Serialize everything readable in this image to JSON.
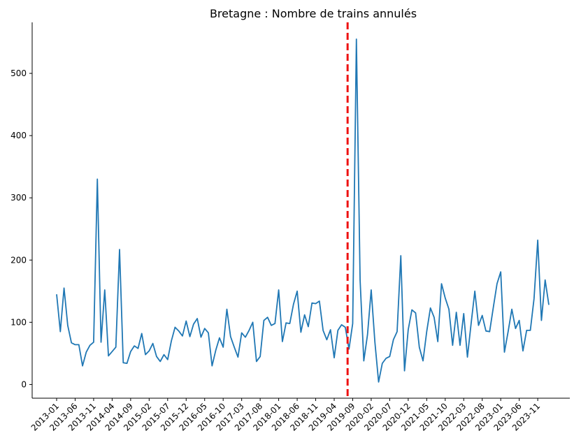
{
  "chart_data": {
    "type": "line",
    "title": "Bretagne : Nombre de trains annulés",
    "xlabel": "",
    "ylabel": "",
    "ylim": [
      -22,
      582
    ],
    "y_ticks": [
      0,
      100,
      200,
      300,
      400,
      500
    ],
    "x_tick_labels": [
      "2013-01",
      "2013-06",
      "2013-11",
      "2014-04",
      "2014-09",
      "2015-02",
      "2015-07",
      "2015-12",
      "2016-05",
      "2016-10",
      "2017-03",
      "2017-08",
      "2018-01",
      "2018-06",
      "2018-11",
      "2019-04",
      "2019-09",
      "2020-02",
      "2020-07",
      "2020-12",
      "2021-05",
      "2021-10",
      "2022-03",
      "2022-08",
      "2023-01",
      "2023-06",
      "2023-11"
    ],
    "x_tick_index": [
      0,
      5,
      10,
      15,
      20,
      25,
      30,
      35,
      40,
      45,
      50,
      55,
      60,
      65,
      70,
      75,
      80,
      85,
      90,
      95,
      100,
      105,
      110,
      115,
      120,
      125,
      130
    ],
    "vline": {
      "index": 79,
      "color": "#ee1111",
      "style": "dashed"
    },
    "grid": false,
    "legend": "none",
    "line_color": "#1f77b4",
    "series": [
      {
        "values": [
          145,
          85,
          155,
          95,
          67,
          64,
          64,
          30,
          52,
          63,
          68,
          330,
          68,
          152,
          46,
          53,
          60,
          217,
          35,
          34,
          53,
          62,
          58,
          82,
          48,
          54,
          66,
          45,
          37,
          48,
          40,
          70,
          92,
          86,
          78,
          102,
          77,
          97,
          106,
          76,
          90,
          83,
          30,
          55,
          75,
          60,
          121,
          77,
          60,
          44,
          83,
          76,
          87,
          100,
          37,
          45,
          103,
          108,
          95,
          98,
          152,
          69,
          99,
          98,
          129,
          150,
          84,
          112,
          93,
          131,
          130,
          134,
          87,
          72,
          88,
          43,
          87,
          96,
          92,
          57,
          98,
          555,
          168,
          38,
          80,
          152,
          68,
          4,
          34,
          42,
          45,
          72,
          85,
          207,
          22,
          88,
          120,
          115,
          60,
          38,
          85,
          123,
          108,
          69,
          162,
          139,
          121,
          63,
          116,
          63,
          114,
          44,
          98,
          150,
          95,
          111,
          86,
          85,
          124,
          162,
          181,
          52,
          85,
          121,
          90,
          103,
          54,
          87,
          87,
          138,
          232,
          103,
          168,
          128
        ]
      }
    ]
  }
}
